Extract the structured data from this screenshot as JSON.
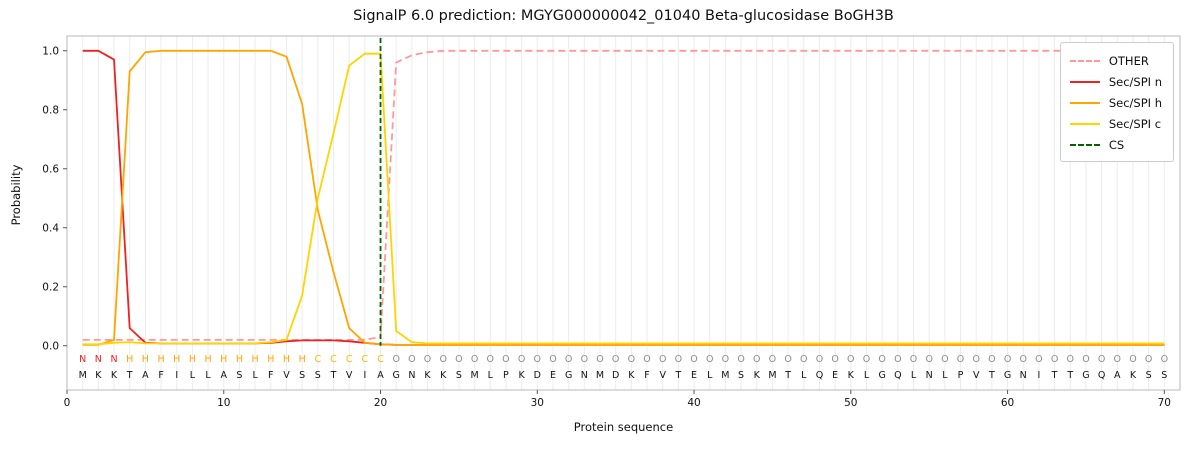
{
  "title": "SignalP 6.0 prediction: MGYG000000042_01040 Beta-glucosidase BoGH3B",
  "colors": {
    "grid": "#ececec",
    "spine": "#b8b8b8",
    "tick": "#555555",
    "text": "#111111",
    "regions": {
      "N": "#ee2222",
      "H": "#ffa500",
      "C": "#f0c000",
      "O": "#8a8a8a"
    }
  },
  "chart_data": {
    "type": "line",
    "xlabel": "Protein sequence",
    "ylabel": "Probability",
    "xlim": [
      0,
      71
    ],
    "ylim": [
      -0.15,
      1.05
    ],
    "xticks": [
      0,
      10,
      20,
      30,
      40,
      50,
      60,
      70
    ],
    "yticks": [
      0.0,
      0.2,
      0.4,
      0.6,
      0.8,
      1.0
    ],
    "grid": "vertical line at every residue position",
    "legend_position": "upper right",
    "sequence": "MKKTAFILLASLFVSSTVIAGNKKSMLPKDEGNMDKFVTELMSKMTLQEKLGQLNLPVTGNITTGQAKSS",
    "region_labels": "NNNHHHHHHHHHHHHCCCCCOOOOOOOOOOOOOOOOOOOOOOOOOOOOOOOOOOOOOOOOOOOOOOOOOO",
    "series": [
      {
        "name": "OTHER",
        "color": "#ff9999",
        "dash": true,
        "values": [
          0.02,
          0.02,
          0.02,
          0.02,
          0.02,
          0.02,
          0.02,
          0.02,
          0.02,
          0.02,
          0.02,
          0.02,
          0.02,
          0.02,
          0.02,
          0.02,
          0.02,
          0.02,
          0.02,
          0.03,
          0.96,
          0.985,
          0.995,
          1.0,
          1.0,
          1.0,
          1.0,
          1.0,
          1.0,
          1.0,
          1.0,
          1.0,
          1.0,
          1.0,
          1.0,
          1.0,
          1.0,
          1.0,
          1.0,
          1.0,
          1.0,
          1.0,
          1.0,
          1.0,
          1.0,
          1.0,
          1.0,
          1.0,
          1.0,
          1.0,
          1.0,
          1.0,
          1.0,
          1.0,
          1.0,
          1.0,
          1.0,
          1.0,
          1.0,
          1.0,
          1.0,
          1.0,
          1.0,
          1.0,
          1.0,
          1.0,
          1.0,
          1.0,
          1.0,
          1.0
        ]
      },
      {
        "name": "Sec/SPI n",
        "color": "#ee2222",
        "dash": false,
        "values": [
          1.0,
          1.0,
          0.97,
          0.06,
          0.01,
          0.008,
          0.008,
          0.008,
          0.008,
          0.008,
          0.008,
          0.008,
          0.01,
          0.015,
          0.018,
          0.018,
          0.018,
          0.015,
          0.01,
          0.005,
          0.003,
          0.003,
          0.003,
          0.003,
          0.003,
          0.003,
          0.003,
          0.003,
          0.003,
          0.003,
          0.003,
          0.003,
          0.003,
          0.003,
          0.003,
          0.003,
          0.003,
          0.003,
          0.003,
          0.003,
          0.003,
          0.003,
          0.003,
          0.003,
          0.003,
          0.003,
          0.003,
          0.003,
          0.003,
          0.003,
          0.003,
          0.003,
          0.003,
          0.003,
          0.003,
          0.003,
          0.003,
          0.003,
          0.003,
          0.003,
          0.003,
          0.003,
          0.003,
          0.003,
          0.003,
          0.003,
          0.003,
          0.003,
          0.003,
          0.003
        ]
      },
      {
        "name": "Sec/SPI h",
        "color": "#ffa500",
        "dash": false,
        "values": [
          0.003,
          0.003,
          0.02,
          0.93,
          0.995,
          1.0,
          1.0,
          1.0,
          1.0,
          1.0,
          1.0,
          1.0,
          1.0,
          0.98,
          0.82,
          0.46,
          0.25,
          0.06,
          0.01,
          0.005,
          0.003,
          0.003,
          0.003,
          0.003,
          0.003,
          0.003,
          0.003,
          0.003,
          0.003,
          0.003,
          0.003,
          0.003,
          0.003,
          0.003,
          0.003,
          0.003,
          0.003,
          0.003,
          0.003,
          0.003,
          0.003,
          0.003,
          0.003,
          0.003,
          0.003,
          0.003,
          0.003,
          0.003,
          0.003,
          0.003,
          0.003,
          0.003,
          0.003,
          0.003,
          0.003,
          0.003,
          0.003,
          0.003,
          0.003,
          0.003,
          0.003,
          0.003,
          0.003,
          0.003,
          0.003,
          0.003,
          0.003,
          0.003,
          0.003,
          0.003
        ]
      },
      {
        "name": "Sec/SPI c",
        "color": "#ffd400",
        "dash": false,
        "values": [
          0.005,
          0.005,
          0.01,
          0.012,
          0.008,
          0.008,
          0.008,
          0.008,
          0.008,
          0.008,
          0.008,
          0.008,
          0.012,
          0.02,
          0.17,
          0.5,
          0.72,
          0.95,
          0.99,
          0.99,
          0.05,
          0.012,
          0.008,
          0.008,
          0.008,
          0.008,
          0.008,
          0.008,
          0.008,
          0.008,
          0.008,
          0.008,
          0.008,
          0.008,
          0.008,
          0.008,
          0.008,
          0.008,
          0.008,
          0.008,
          0.008,
          0.008,
          0.008,
          0.008,
          0.008,
          0.008,
          0.008,
          0.008,
          0.008,
          0.008,
          0.008,
          0.008,
          0.008,
          0.008,
          0.008,
          0.008,
          0.008,
          0.008,
          0.008,
          0.008,
          0.008,
          0.008,
          0.008,
          0.008,
          0.008,
          0.008,
          0.008,
          0.008,
          0.008,
          0.008
        ]
      }
    ],
    "cs": {
      "name": "CS",
      "color": "#006400",
      "dash": true,
      "x": 20
    }
  }
}
